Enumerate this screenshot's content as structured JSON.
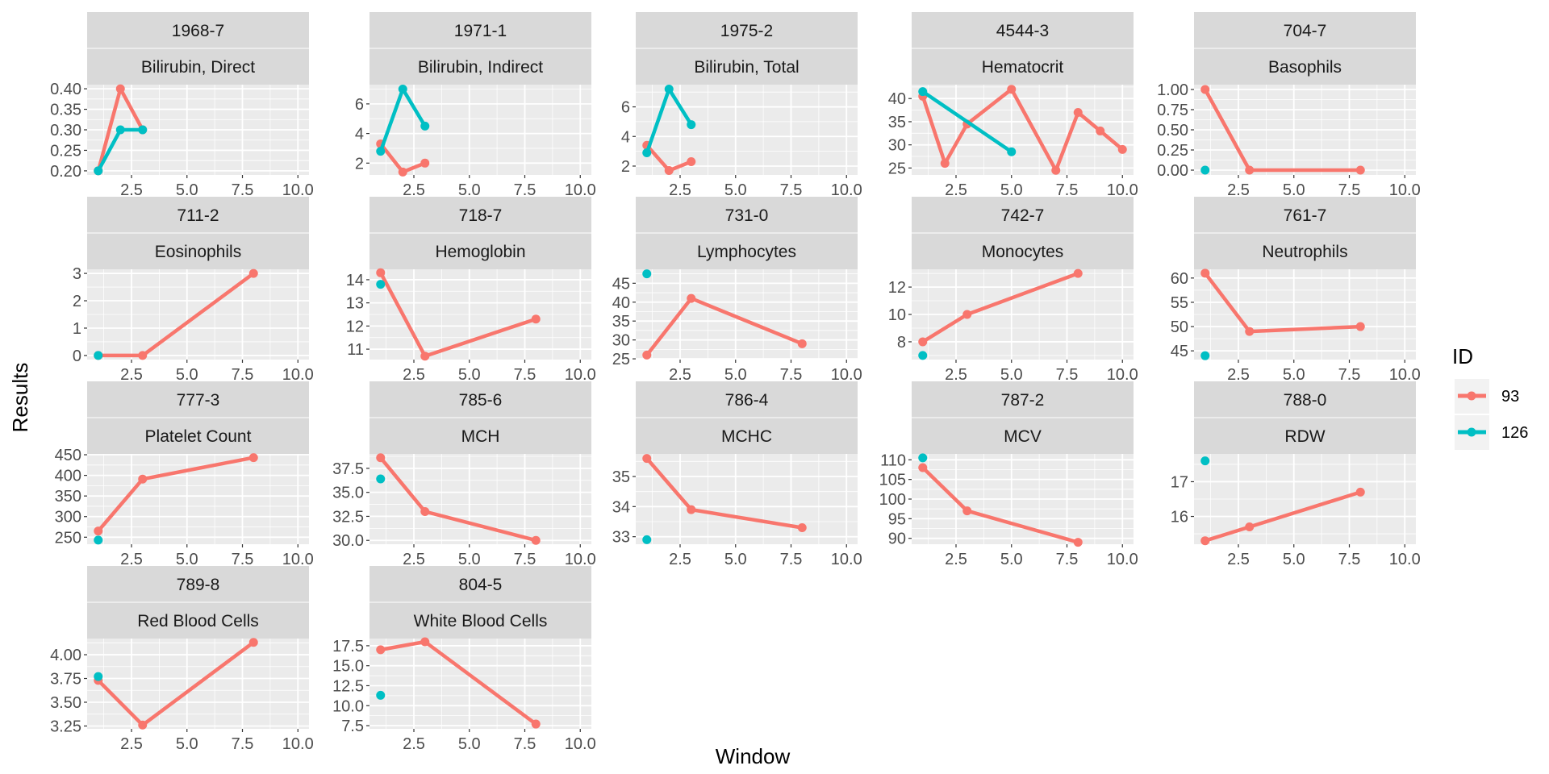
{
  "colors": {
    "panel_bg": "#EBEBEB",
    "grid": "#FFFFFF",
    "strip_bg": "#D9D9D9",
    "series_93": "#F8766D",
    "series_126": "#00BFC4"
  },
  "chart_data": {
    "type": "line",
    "layout": "facet_wrap",
    "xlabel": "Window",
    "ylabel": "Results",
    "xlim": [
      0.5,
      10.5
    ],
    "xticks": [
      "2.5",
      "5.0",
      "7.5",
      "10.0"
    ],
    "grid": true,
    "legend": {
      "title": "ID",
      "position": "right",
      "entries": [
        "93",
        "126"
      ]
    },
    "panels": [
      {
        "code": "1968-7",
        "name": "Bilirubin, Direct",
        "ylim": [
          0.19,
          0.41
        ],
        "yticks": [
          "0.20",
          "0.25",
          "0.30",
          "0.35",
          "0.40"
        ],
        "series": [
          {
            "name": "93",
            "points": [
              [
                1,
                0.2
              ],
              [
                2,
                0.4
              ],
              [
                3,
                0.3
              ]
            ]
          },
          {
            "name": "126",
            "points": [
              [
                1,
                0.2
              ],
              [
                2,
                0.3
              ],
              [
                3,
                0.3
              ]
            ]
          }
        ]
      },
      {
        "code": "1971-1",
        "name": "Bilirubin, Indirect",
        "ylim": [
          1.2,
          7.3
        ],
        "yticks": [
          "2",
          "4",
          "6"
        ],
        "series": [
          {
            "name": "93",
            "points": [
              [
                1,
                3.3
              ],
              [
                2,
                1.4
              ],
              [
                3,
                2.0
              ]
            ]
          },
          {
            "name": "126",
            "points": [
              [
                1,
                2.8
              ],
              [
                2,
                7.0
              ],
              [
                3,
                4.5
              ]
            ]
          }
        ]
      },
      {
        "code": "1975-2",
        "name": "Bilirubin, Total",
        "ylim": [
          1.4,
          7.5
        ],
        "yticks": [
          "2",
          "4",
          "6"
        ],
        "series": [
          {
            "name": "93",
            "points": [
              [
                1,
                3.4
              ],
              [
                2,
                1.7
              ],
              [
                3,
                2.3
              ]
            ]
          },
          {
            "name": "126",
            "points": [
              [
                1,
                2.9
              ],
              [
                2,
                7.2
              ],
              [
                3,
                4.8
              ]
            ]
          }
        ]
      },
      {
        "code": "4544-3",
        "name": "Hematocrit",
        "ylim": [
          23.5,
          43
        ],
        "yticks": [
          "25",
          "30",
          "35",
          "40"
        ],
        "series": [
          {
            "name": "93",
            "points": [
              [
                1,
                40.5
              ],
              [
                2,
                26
              ],
              [
                3,
                34.5
              ],
              [
                5,
                42
              ],
              [
                7,
                24.5
              ],
              [
                8,
                37
              ],
              [
                9,
                33
              ],
              [
                10,
                29
              ]
            ]
          },
          {
            "name": "126",
            "points": [
              [
                1,
                41.5
              ],
              [
                5,
                28.5
              ]
            ]
          }
        ]
      },
      {
        "code": "704-7",
        "name": "Basophils",
        "ylim": [
          -0.06,
          1.06
        ],
        "yticks": [
          "0.00",
          "0.25",
          "0.50",
          "0.75",
          "1.00"
        ],
        "series": [
          {
            "name": "93",
            "points": [
              [
                1,
                1.0
              ],
              [
                3,
                0.0
              ],
              [
                8,
                0.0
              ]
            ]
          },
          {
            "name": "126",
            "points": [
              [
                1,
                0.0
              ]
            ]
          }
        ]
      },
      {
        "code": "711-2",
        "name": "Eosinophils",
        "ylim": [
          -0.15,
          3.15
        ],
        "yticks": [
          "0",
          "1",
          "2",
          "3"
        ],
        "series": [
          {
            "name": "93",
            "points": [
              [
                1,
                0
              ],
              [
                3,
                0
              ],
              [
                8,
                3
              ]
            ]
          },
          {
            "name": "126",
            "points": [
              [
                1,
                0
              ]
            ]
          }
        ]
      },
      {
        "code": "718-7",
        "name": "Hemoglobin",
        "ylim": [
          10.55,
          14.45
        ],
        "yticks": [
          "11",
          "12",
          "13",
          "14"
        ],
        "series": [
          {
            "name": "93",
            "points": [
              [
                1,
                14.3
              ],
              [
                3,
                10.7
              ],
              [
                8,
                12.3
              ]
            ]
          },
          {
            "name": "126",
            "points": [
              [
                1,
                13.8
              ]
            ]
          }
        ]
      },
      {
        "code": "731-0",
        "name": "Lymphocytes",
        "ylim": [
          24.8,
          48.7
        ],
        "yticks": [
          "25",
          "30",
          "35",
          "40",
          "45"
        ],
        "series": [
          {
            "name": "93",
            "points": [
              [
                1,
                26
              ],
              [
                3,
                41
              ],
              [
                8,
                29
              ]
            ]
          },
          {
            "name": "126",
            "points": [
              [
                1,
                47.5
              ]
            ]
          }
        ]
      },
      {
        "code": "742-7",
        "name": "Monocytes",
        "ylim": [
          6.7,
          13.3
        ],
        "yticks": [
          "8",
          "10",
          "12"
        ],
        "series": [
          {
            "name": "93",
            "points": [
              [
                1,
                8
              ],
              [
                3,
                10
              ],
              [
                8,
                13
              ]
            ]
          },
          {
            "name": "126",
            "points": [
              [
                1,
                7
              ]
            ]
          }
        ]
      },
      {
        "code": "761-7",
        "name": "Neutrophils",
        "ylim": [
          43.2,
          61.8
        ],
        "yticks": [
          "45",
          "50",
          "55",
          "60"
        ],
        "series": [
          {
            "name": "93",
            "points": [
              [
                1,
                61
              ],
              [
                3,
                49
              ],
              [
                8,
                50
              ]
            ]
          },
          {
            "name": "126",
            "points": [
              [
                1,
                44
              ]
            ]
          }
        ]
      },
      {
        "code": "777-3",
        "name": "Platelet Count",
        "ylim": [
          233,
          452
        ],
        "yticks": [
          "250",
          "300",
          "350",
          "400",
          "450"
        ],
        "series": [
          {
            "name": "93",
            "points": [
              [
                1,
                265
              ],
              [
                3,
                391
              ],
              [
                8,
                443
              ]
            ]
          },
          {
            "name": "126",
            "points": [
              [
                1,
                243
              ]
            ]
          }
        ]
      },
      {
        "code": "785-6",
        "name": "MCH",
        "ylim": [
          29.6,
          39.0
        ],
        "yticks": [
          "30.0",
          "32.5",
          "35.0",
          "37.5"
        ],
        "series": [
          {
            "name": "93",
            "points": [
              [
                1,
                38.6
              ],
              [
                3,
                33.0
              ],
              [
                8,
                30.0
              ]
            ]
          },
          {
            "name": "126",
            "points": [
              [
                1,
                36.4
              ]
            ]
          }
        ]
      },
      {
        "code": "786-4",
        "name": "MCHC",
        "ylim": [
          32.75,
          35.75
        ],
        "yticks": [
          "33",
          "34",
          "35"
        ],
        "series": [
          {
            "name": "93",
            "points": [
              [
                1,
                35.6
              ],
              [
                3,
                33.9
              ],
              [
                8,
                33.3
              ]
            ]
          },
          {
            "name": "126",
            "points": [
              [
                1,
                32.9
              ]
            ]
          }
        ]
      },
      {
        "code": "787-2",
        "name": "MCV",
        "ylim": [
          88.5,
          111.5
        ],
        "yticks": [
          "90",
          "95",
          "100",
          "105",
          "110"
        ],
        "series": [
          {
            "name": "93",
            "points": [
              [
                1,
                108
              ],
              [
                3,
                97
              ],
              [
                8,
                89
              ]
            ]
          },
          {
            "name": "126",
            "points": [
              [
                1,
                110.5
              ]
            ]
          }
        ]
      },
      {
        "code": "788-0",
        "name": "RDW",
        "ylim": [
          15.2,
          17.8
        ],
        "yticks": [
          "16",
          "17"
        ],
        "series": [
          {
            "name": "93",
            "points": [
              [
                1,
                15.3
              ],
              [
                3,
                15.7
              ],
              [
                8,
                16.7
              ]
            ]
          },
          {
            "name": "126",
            "points": [
              [
                1,
                17.6
              ]
            ]
          }
        ]
      },
      {
        "code": "789-8",
        "name": "Red Blood Cells",
        "ylim": [
          3.22,
          4.17
        ],
        "yticks": [
          "3.25",
          "3.50",
          "3.75",
          "4.00"
        ],
        "series": [
          {
            "name": "93",
            "points": [
              [
                1,
                3.73
              ],
              [
                3,
                3.26
              ],
              [
                8,
                4.13
              ]
            ]
          },
          {
            "name": "126",
            "points": [
              [
                1,
                3.77
              ]
            ]
          }
        ]
      },
      {
        "code": "804-5",
        "name": "White Blood Cells",
        "ylim": [
          7.1,
          18.4
        ],
        "yticks": [
          "7.5",
          "10.0",
          "12.5",
          "15.0",
          "17.5"
        ],
        "series": [
          {
            "name": "93",
            "points": [
              [
                1,
                17.0
              ],
              [
                3,
                18.0
              ],
              [
                8,
                7.7
              ]
            ]
          },
          {
            "name": "126",
            "points": [
              [
                1,
                11.3
              ]
            ]
          }
        ]
      }
    ]
  }
}
